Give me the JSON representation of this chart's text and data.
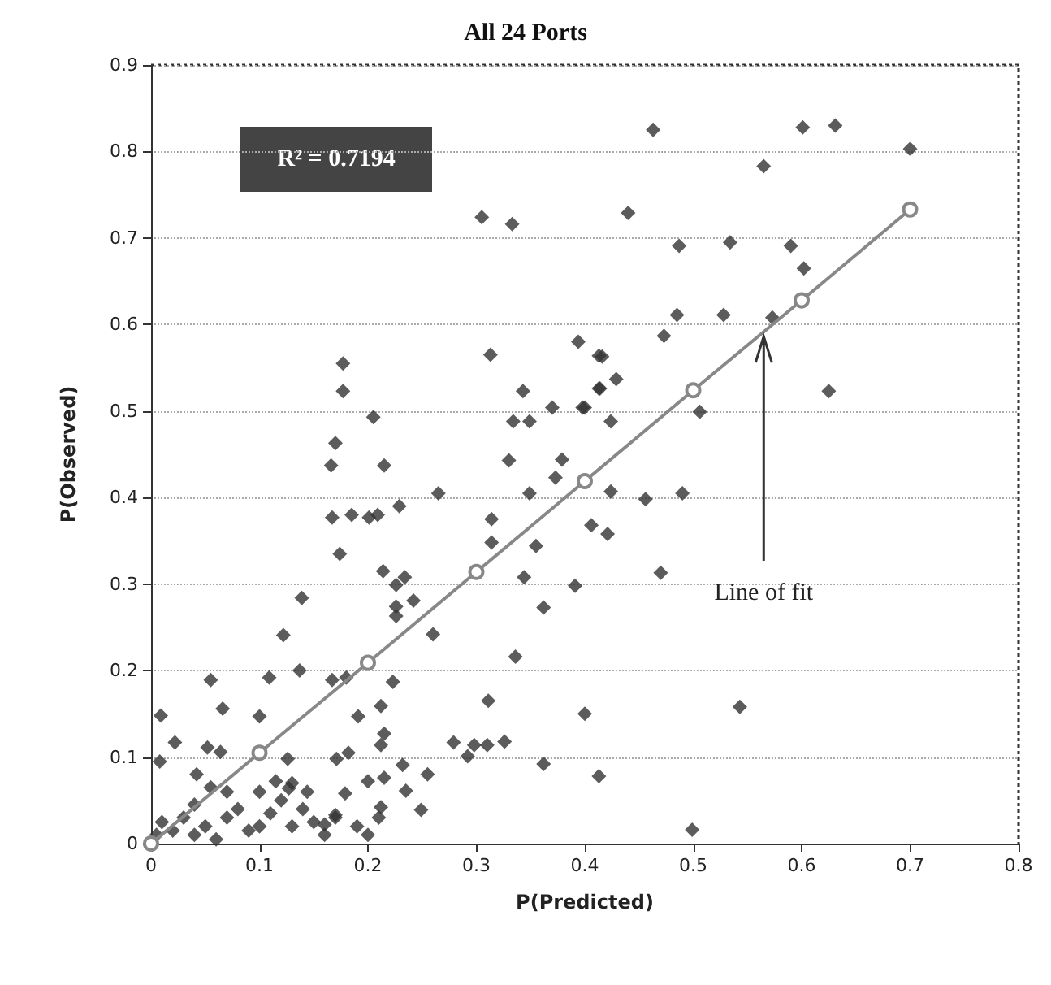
{
  "chart_data": {
    "type": "scatter",
    "title": "All 24 Ports",
    "xlabel": "P(Predicted)",
    "ylabel": "P(Observed)",
    "xlim": [
      0,
      0.8
    ],
    "xticks": [
      0,
      0.1,
      0.2,
      0.3,
      0.4,
      0.5,
      0.6,
      0.7,
      0.8
    ],
    "ylim": [
      0,
      0.9
    ],
    "yticks": [
      0,
      0.1,
      0.2,
      0.3,
      0.4,
      0.5,
      0.6,
      0.7,
      0.8,
      0.9
    ],
    "grid": "y",
    "marker": "diamond",
    "annotations": [
      "R² = 0.7194",
      {
        "text": "Line of fit",
        "x": 0.565,
        "y": 0.59
      }
    ],
    "series": [
      {
        "color": "#333333",
        "x": [
          0.463,
          0.601,
          0.631,
          0.7,
          0.565,
          0.44,
          0.487,
          0.534,
          0.59,
          0.602,
          0.485,
          0.528,
          0.473,
          0.573,
          0.416,
          0.414,
          0.429,
          0.4,
          0.424,
          0.506,
          0.625,
          0.305,
          0.333,
          0.177,
          0.177,
          0.205,
          0.17,
          0.313,
          0.343,
          0.334,
          0.349,
          0.37,
          0.398,
          0.394,
          0.413,
          0.413,
          0.166,
          0.215,
          0.33,
          0.379,
          0.373,
          0.265,
          0.349,
          0.167,
          0.185,
          0.201,
          0.209,
          0.229,
          0.314,
          0.406,
          0.174,
          0.314,
          0.355,
          0.214,
          0.234,
          0.226,
          0.344,
          0.391,
          0.139,
          0.242,
          0.226,
          0.226,
          0.362,
          0.122,
          0.26,
          0.336,
          0.055,
          0.109,
          0.137,
          0.167,
          0.18,
          0.223,
          0.009,
          0.066,
          0.1,
          0.191,
          0.212,
          0.311,
          0.4,
          0.022,
          0.052,
          0.064,
          0.126,
          0.212,
          0.215,
          0.171,
          0.182,
          0.279,
          0.292,
          0.298,
          0.31,
          0.326,
          0.008,
          0.232,
          0.362,
          0.413,
          0.042,
          0.115,
          0.127,
          0.144,
          0.2,
          0.215,
          0.255,
          0.179,
          0.235,
          0.212,
          0.249,
          0.17,
          0.16,
          0.424,
          0.456,
          0.49,
          0.421,
          0.47,
          0.543,
          0.499,
          0.005,
          0.01,
          0.02,
          0.03,
          0.04,
          0.05,
          0.06,
          0.07,
          0.08,
          0.09,
          0.1,
          0.11,
          0.12,
          0.13,
          0.14,
          0.15,
          0.16,
          0.17,
          0.19,
          0.2,
          0.21,
          0.07,
          0.1,
          0.13,
          0.04,
          0.055
        ],
        "values": [
          0.825,
          0.828,
          0.83,
          0.803,
          0.783,
          0.729,
          0.691,
          0.695,
          0.691,
          0.665,
          0.611,
          0.611,
          0.587,
          0.608,
          0.563,
          0.526,
          0.537,
          0.504,
          0.488,
          0.499,
          0.523,
          0.724,
          0.716,
          0.555,
          0.523,
          0.493,
          0.463,
          0.565,
          0.523,
          0.488,
          0.488,
          0.504,
          0.504,
          0.58,
          0.564,
          0.526,
          0.437,
          0.437,
          0.443,
          0.444,
          0.423,
          0.405,
          0.405,
          0.377,
          0.38,
          0.377,
          0.38,
          0.39,
          0.375,
          0.368,
          0.335,
          0.348,
          0.344,
          0.315,
          0.308,
          0.299,
          0.308,
          0.298,
          0.284,
          0.281,
          0.274,
          0.263,
          0.273,
          0.241,
          0.242,
          0.216,
          0.189,
          0.192,
          0.2,
          0.189,
          0.192,
          0.187,
          0.148,
          0.156,
          0.147,
          0.147,
          0.159,
          0.165,
          0.15,
          0.117,
          0.111,
          0.106,
          0.098,
          0.114,
          0.127,
          0.098,
          0.105,
          0.117,
          0.101,
          0.114,
          0.114,
          0.118,
          0.095,
          0.091,
          0.092,
          0.078,
          0.08,
          0.072,
          0.064,
          0.06,
          0.072,
          0.076,
          0.08,
          0.058,
          0.061,
          0.042,
          0.039,
          0.033,
          0.022,
          0.407,
          0.398,
          0.405,
          0.358,
          0.313,
          0.158,
          0.016,
          0.01,
          0.025,
          0.015,
          0.03,
          0.01,
          0.02,
          0.005,
          0.03,
          0.04,
          0.015,
          0.02,
          0.035,
          0.05,
          0.02,
          0.04,
          0.025,
          0.01,
          0.03,
          0.02,
          0.01,
          0.03,
          0.06,
          0.06,
          0.07,
          0.045,
          0.065
        ]
      },
      {
        "type": "line",
        "color": "#888888",
        "marker": "circle",
        "x": [
          0,
          0.1,
          0.2,
          0.3,
          0.4,
          0.5,
          0.6,
          0.7
        ],
        "values": [
          0,
          0.105,
          0.209,
          0.314,
          0.419,
          0.524,
          0.628,
          0.733
        ]
      }
    ]
  }
}
